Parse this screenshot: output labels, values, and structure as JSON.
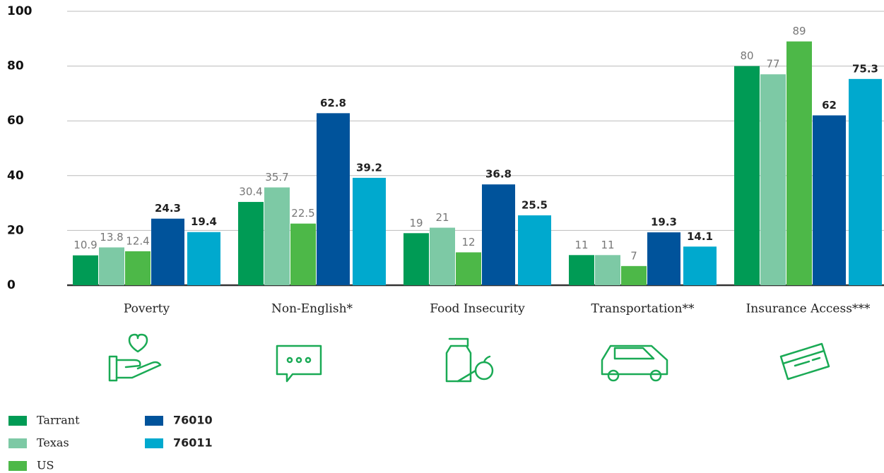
{
  "chart_data": {
    "type": "bar",
    "categories": [
      "Poverty",
      "Non-English*",
      "Food Insecurity",
      "Transportation**",
      "Insurance Access***"
    ],
    "series": [
      {
        "name": "Tarrant",
        "color": "#009b55",
        "values": [
          10.9,
          30.4,
          19,
          11,
          80
        ]
      },
      {
        "name": "Texas",
        "color": "#7dc9a5",
        "values": [
          13.8,
          35.7,
          21,
          11,
          77
        ]
      },
      {
        "name": "US",
        "color": "#4db848",
        "values": [
          12.4,
          22.5,
          12,
          7,
          89
        ]
      },
      {
        "name": "76010",
        "color": "#00539b",
        "values": [
          24.3,
          62.8,
          36.8,
          19.3,
          62
        ]
      },
      {
        "name": "76011",
        "color": "#00a9ce",
        "values": [
          19.4,
          39.2,
          25.5,
          14.1,
          75.3
        ]
      }
    ],
    "ylim": [
      0,
      100
    ],
    "yticks": [
      0,
      20,
      40,
      60,
      80,
      100
    ],
    "grid": true
  }
}
